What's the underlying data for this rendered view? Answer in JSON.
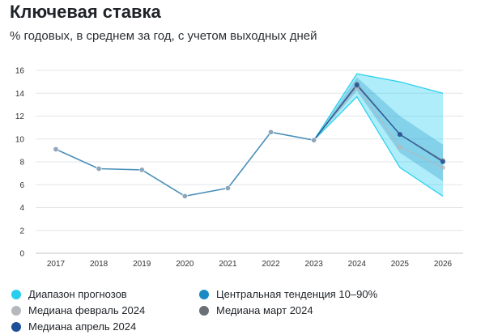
{
  "header": {
    "title": "Ключевая ставка",
    "subtitle": "% годовых, в среднем за год, с учетом выходных дней"
  },
  "chart_data": {
    "type": "line",
    "title": "Ключевая ставка",
    "subtitle": "% годовых, в среднем за год, с учетом выходных дней",
    "xlabel": "",
    "ylabel": "",
    "x": [
      "2017",
      "2018",
      "2019",
      "2020",
      "2021",
      "2022",
      "2023",
      "2024",
      "2025",
      "2026"
    ],
    "ylim": [
      0,
      16
    ],
    "yticks": [
      0,
      2,
      4,
      6,
      8,
      10,
      12,
      14,
      16
    ],
    "grid": true,
    "legend_position": "bottom",
    "history": {
      "x": [
        "2017",
        "2018",
        "2019",
        "2020",
        "2021",
        "2022",
        "2023"
      ],
      "values": [
        9.1,
        7.4,
        7.3,
        5.0,
        5.7,
        10.6,
        9.9
      ],
      "color": "#4a90b8"
    },
    "forecast_range": {
      "name": "Диапазон прогнозов",
      "color": "#2ad0f0",
      "x": [
        "2023",
        "2024",
        "2025",
        "2026"
      ],
      "low": [
        9.9,
        13.7,
        7.5,
        5.0
      ],
      "high": [
        9.9,
        15.7,
        15.0,
        14.0
      ]
    },
    "central_tendency": {
      "name": "Центральная тенденция 10–90%",
      "color": "#1a8ac4",
      "x": [
        "2023",
        "2024",
        "2025",
        "2026"
      ],
      "low": [
        9.9,
        14.2,
        8.8,
        6.3
      ],
      "high": [
        9.9,
        15.4,
        12.0,
        9.5
      ]
    },
    "medians": [
      {
        "name": "Медиана февраль 2024",
        "color": "#b4b8bd",
        "x": [
          "2023",
          "2024",
          "2025",
          "2026"
        ],
        "values": [
          9.9,
          14.5,
          9.3,
          7.5
        ]
      },
      {
        "name": "Медиана март 2024",
        "color": "#6a6f75",
        "x": [
          "2023",
          "2024",
          "2025",
          "2026"
        ],
        "values": [
          9.9,
          14.8,
          10.4,
          8.1
        ]
      },
      {
        "name": "Медиана апрель 2024",
        "color": "#1e4f99",
        "x": [
          "2023",
          "2024",
          "2025",
          "2026"
        ],
        "values": [
          9.9,
          14.7,
          10.4,
          8.0
        ]
      }
    ]
  },
  "legend": [
    {
      "label": "Диапазон прогнозов",
      "color": "#29cdee"
    },
    {
      "label": "Центральная тенденция 10–90%",
      "color": "#1a8ac4"
    },
    {
      "label": "Медиана февраль 2024",
      "color": "#b4b8bd"
    },
    {
      "label": "Медиана март 2024",
      "color": "#6a6f75"
    },
    {
      "label": "Медиана апрель 2024",
      "color": "#1e4f99"
    }
  ]
}
